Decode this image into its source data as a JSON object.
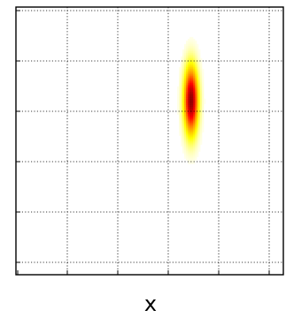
{
  "chart_data": {
    "type": "heatmap",
    "title": "",
    "xlabel": "x",
    "ylabel": "",
    "grid": true,
    "x_ticks": 6,
    "y_ticks": 6,
    "blobs": [
      {
        "cx": 0.655,
        "cy": 0.65,
        "sx": 0.018,
        "sy": 0.085,
        "peak": 1.0
      }
    ],
    "colormap": [
      "#ffffff",
      "#ffff00",
      "#ff8c00",
      "#ff0000",
      "#8b0000"
    ]
  }
}
